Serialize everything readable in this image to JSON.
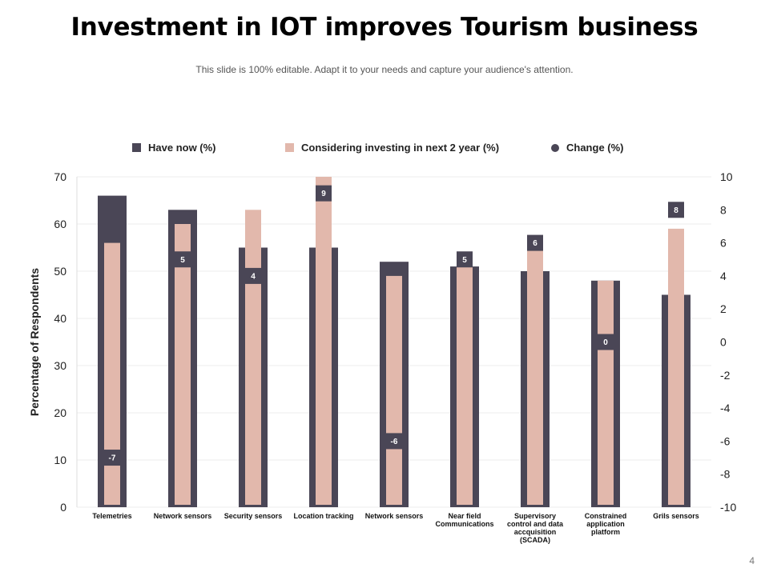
{
  "title": "Investment in IOT improves Tourism business",
  "subtitle": "This slide is 100% editable. Adapt it to your needs and capture your audience's attention.",
  "page_number": "4",
  "colors": {
    "have_now": "#4a4656",
    "considering": "#e2b8ac",
    "change": "#4a4656",
    "grid": "#eeeeee",
    "label_text": "#ffffff"
  },
  "chart_data": {
    "type": "bar",
    "ylabel": "Percentage of Respondents",
    "ylim": [
      0,
      70
    ],
    "y_ticks": [
      0,
      10,
      20,
      30,
      40,
      50,
      60,
      70
    ],
    "y2lim": [
      -10,
      10
    ],
    "y2_ticks": [
      -10,
      -8,
      -6,
      -4,
      -2,
      0,
      2,
      4,
      6,
      8,
      10
    ],
    "legend_position": "top",
    "grid": true,
    "categories": [
      "Telemetries",
      "Network sensors",
      "Security sensors",
      "Location tracking",
      "Network sensors",
      "Near field Communications",
      "Supervisory control and data accquisition (SCADA)",
      "Constrained application platform",
      "Grils sensors"
    ],
    "series": [
      {
        "name": "Have now (%)",
        "values": [
          66,
          63,
          55,
          55,
          52,
          51,
          50,
          48,
          45
        ]
      },
      {
        "name": "Considering investing in next 2 year (%)",
        "values": [
          56,
          60,
          63,
          70,
          49,
          53,
          56,
          48,
          59
        ]
      },
      {
        "name": "Change (%)",
        "values": [
          -7,
          5,
          4,
          9,
          -6,
          5,
          6,
          0,
          8
        ]
      }
    ]
  }
}
